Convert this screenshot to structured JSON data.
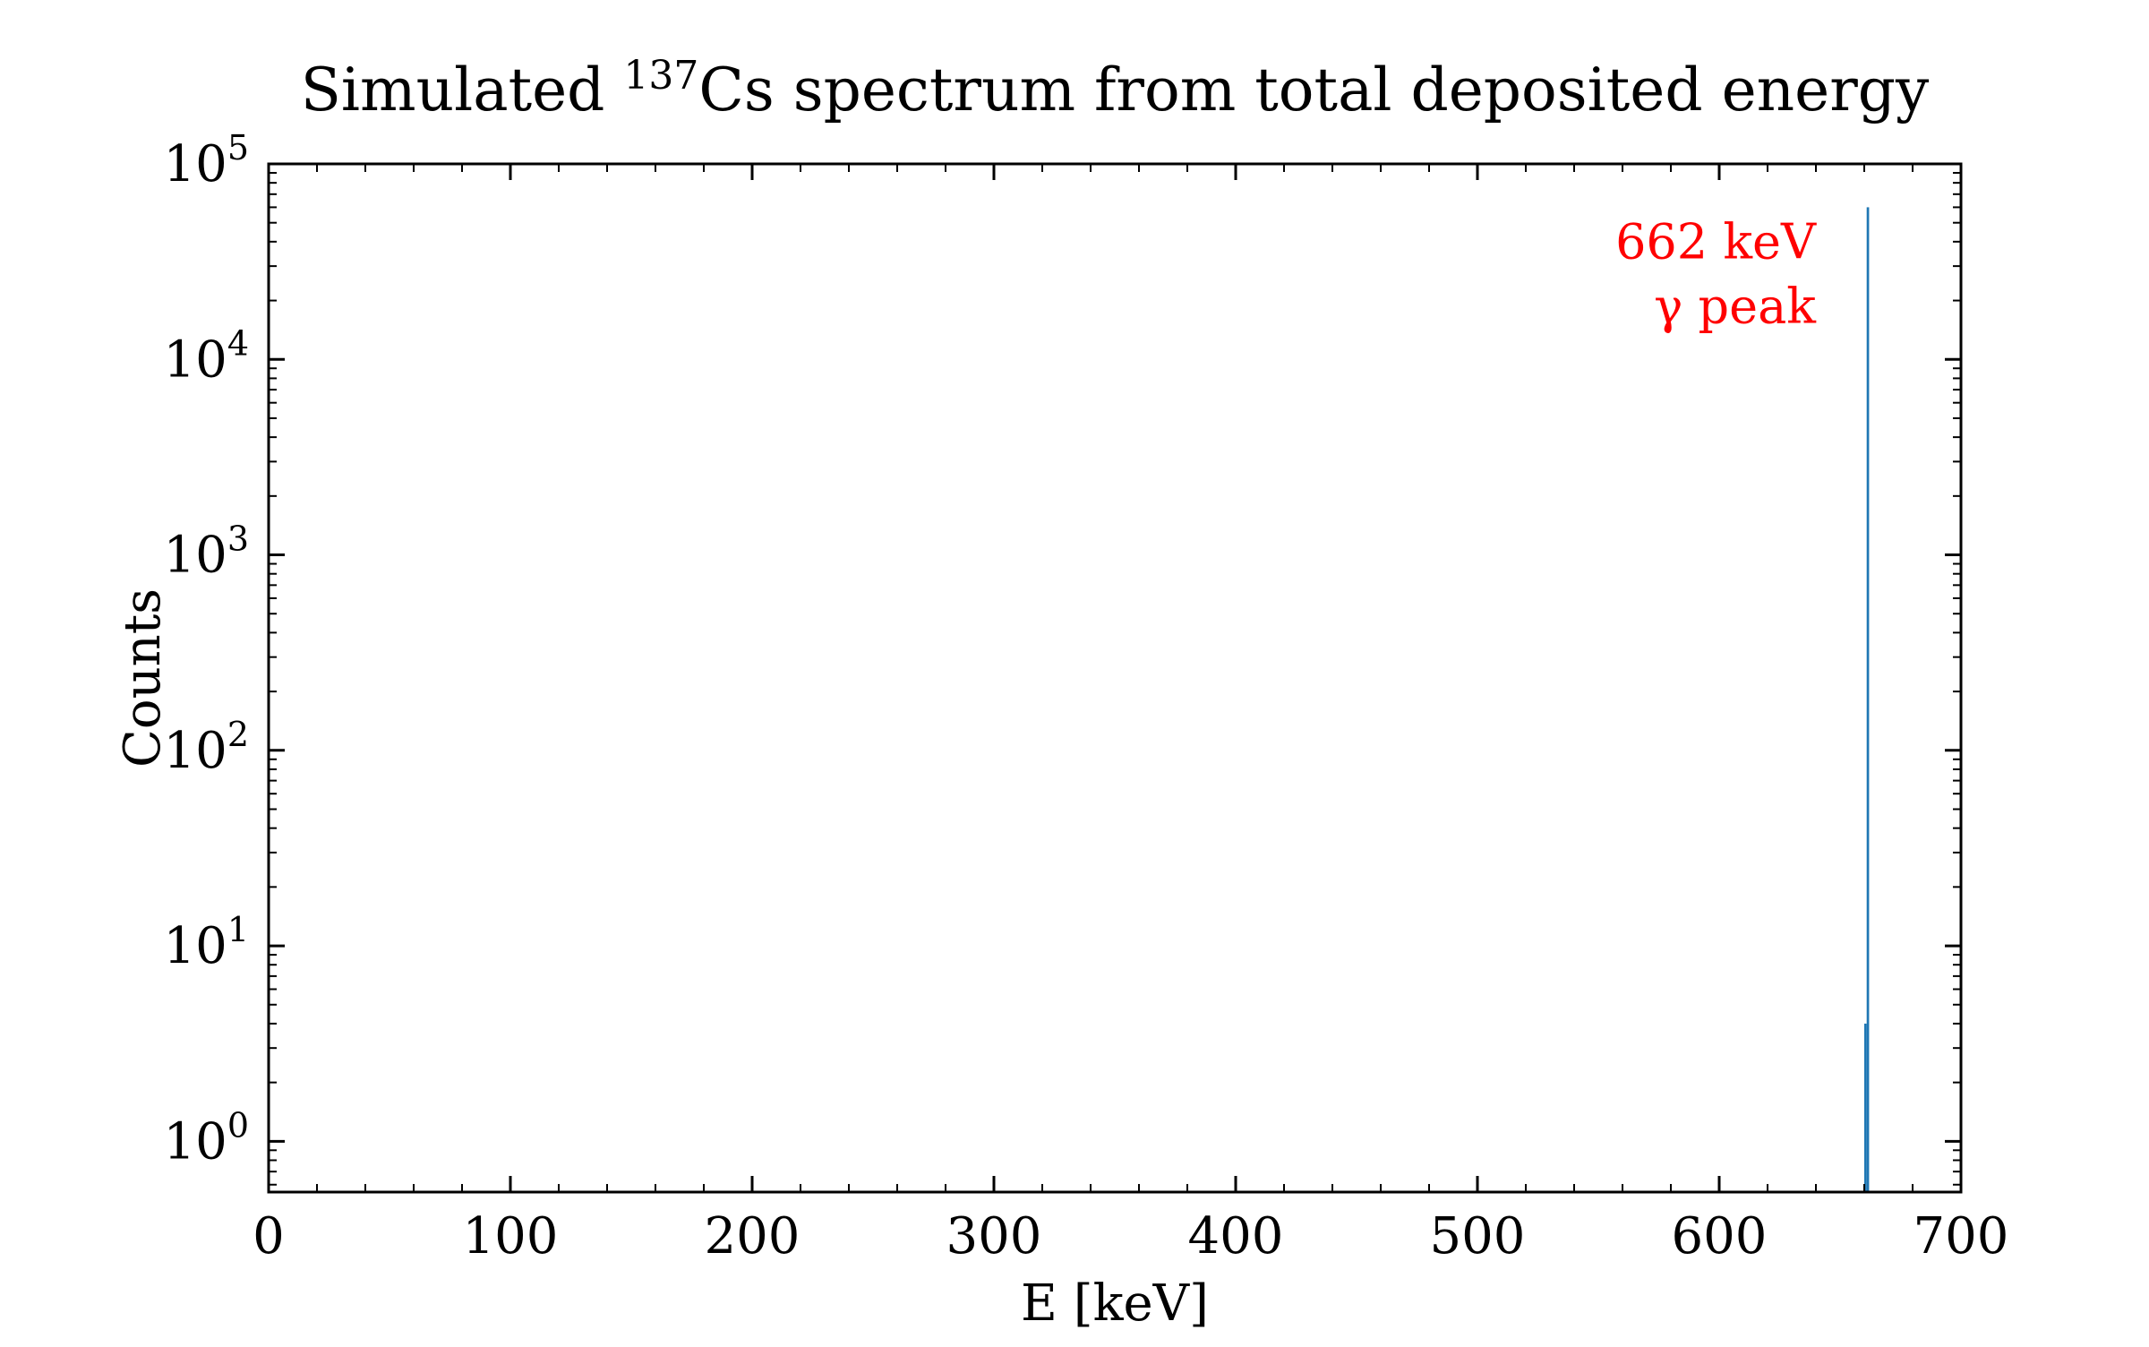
{
  "chart_data": {
    "type": "bar",
    "title": {
      "prefix": "Simulated ",
      "superscript": "137",
      "suffix": "Cs spectrum from total deposited energy"
    },
    "xlabel": "E [keV]",
    "ylabel": "Counts",
    "xlim": [
      0,
      700
    ],
    "ylim": [
      0.55,
      100000
    ],
    "yscale": "log",
    "xticks": [
      0,
      100,
      200,
      300,
      400,
      500,
      600,
      700
    ],
    "yticks": [
      {
        "value": 1,
        "base": "10",
        "exp": "0"
      },
      {
        "value": 10,
        "base": "10",
        "exp": "1"
      },
      {
        "value": 100,
        "base": "10",
        "exp": "2"
      },
      {
        "value": 1000,
        "base": "10",
        "exp": "3"
      },
      {
        "value": 10000,
        "base": "10",
        "exp": "4"
      },
      {
        "value": 100000,
        "base": "10",
        "exp": "5"
      }
    ],
    "series": [
      {
        "x": [
          660,
          661
        ],
        "values": [
          4,
          60000
        ],
        "bin_width": 1
      }
    ],
    "annotations": [
      {
        "lines": [
          "662 keV",
          "γ peak"
        ],
        "x": 640,
        "y": 60000,
        "color": "#ff0000"
      }
    ],
    "grid": false,
    "colors": {
      "bar": "#1f77b4",
      "annotation": "#ff0000",
      "axes": "#000000"
    }
  }
}
